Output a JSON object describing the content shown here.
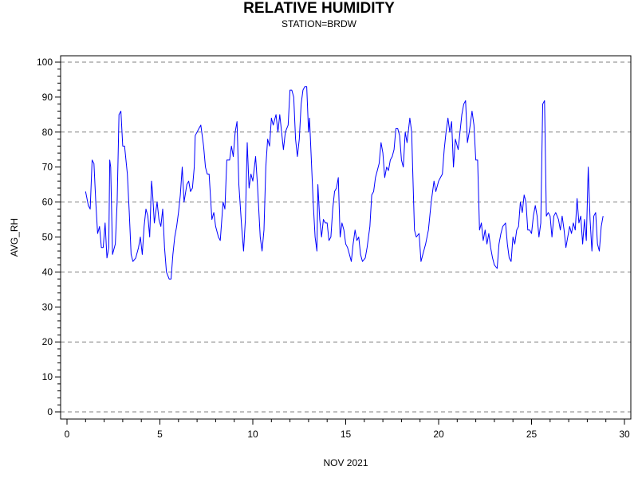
{
  "chart_data": {
    "type": "line",
    "title": "RELATIVE HUMIDITY",
    "subtitle": "STATION=BRDW",
    "xlabel": "NOV 2021",
    "ylabel": "AVG_RH",
    "xlim": [
      0,
      30
    ],
    "ylim": [
      0,
      100
    ],
    "x_ticks": [
      0,
      5,
      10,
      15,
      20,
      25,
      30
    ],
    "y_ticks": [
      0,
      10,
      20,
      30,
      40,
      50,
      60,
      70,
      80,
      90,
      100
    ],
    "grid": {
      "horizontal": true,
      "style": "dashed",
      "lines_at": [
        0,
        20,
        40,
        60,
        80,
        100
      ]
    },
    "series": [
      {
        "color": "#0000ff",
        "points": [
          [
            1.0,
            63
          ],
          [
            1.15,
            59
          ],
          [
            1.25,
            58
          ],
          [
            1.35,
            72
          ],
          [
            1.45,
            71
          ],
          [
            1.55,
            60
          ],
          [
            1.65,
            51
          ],
          [
            1.75,
            53
          ],
          [
            1.85,
            47
          ],
          [
            1.95,
            47
          ],
          [
            2.05,
            54
          ],
          [
            2.15,
            44
          ],
          [
            2.25,
            47
          ],
          [
            2.3,
            72
          ],
          [
            2.35,
            70
          ],
          [
            2.45,
            45
          ],
          [
            2.6,
            48
          ],
          [
            2.7,
            60
          ],
          [
            2.8,
            85
          ],
          [
            2.9,
            86
          ],
          [
            3.0,
            76
          ],
          [
            3.1,
            76
          ],
          [
            3.25,
            68
          ],
          [
            3.35,
            57
          ],
          [
            3.45,
            45
          ],
          [
            3.55,
            43
          ],
          [
            3.7,
            44
          ],
          [
            3.85,
            47
          ],
          [
            3.95,
            50
          ],
          [
            4.05,
            45
          ],
          [
            4.15,
            53
          ],
          [
            4.25,
            58
          ],
          [
            4.35,
            56
          ],
          [
            4.45,
            50
          ],
          [
            4.55,
            66
          ],
          [
            4.6,
            63
          ],
          [
            4.7,
            54
          ],
          [
            4.85,
            60
          ],
          [
            4.95,
            55
          ],
          [
            5.05,
            53
          ],
          [
            5.15,
            58
          ],
          [
            5.25,
            47
          ],
          [
            5.35,
            40
          ],
          [
            5.5,
            38
          ],
          [
            5.6,
            38
          ],
          [
            5.7,
            45
          ],
          [
            5.8,
            50
          ],
          [
            5.9,
            53
          ],
          [
            6.0,
            57
          ],
          [
            6.1,
            62
          ],
          [
            6.2,
            70
          ],
          [
            6.3,
            60
          ],
          [
            6.45,
            65
          ],
          [
            6.55,
            66
          ],
          [
            6.65,
            63
          ],
          [
            6.75,
            64
          ],
          [
            6.85,
            70
          ],
          [
            6.9,
            79
          ],
          [
            7.0,
            80
          ],
          [
            7.1,
            81
          ],
          [
            7.2,
            82
          ],
          [
            7.35,
            76
          ],
          [
            7.45,
            70
          ],
          [
            7.55,
            68
          ],
          [
            7.65,
            68
          ],
          [
            7.8,
            55
          ],
          [
            7.9,
            57
          ],
          [
            8.0,
            53
          ],
          [
            8.15,
            50
          ],
          [
            8.25,
            49
          ],
          [
            8.4,
            60
          ],
          [
            8.5,
            58
          ],
          [
            8.6,
            72
          ],
          [
            8.75,
            72
          ],
          [
            8.85,
            76
          ],
          [
            8.95,
            73
          ],
          [
            9.05,
            80
          ],
          [
            9.15,
            83
          ],
          [
            9.25,
            65
          ],
          [
            9.4,
            53
          ],
          [
            9.5,
            46
          ],
          [
            9.6,
            55
          ],
          [
            9.7,
            77
          ],
          [
            9.8,
            64
          ],
          [
            9.9,
            68
          ],
          [
            10.0,
            66
          ],
          [
            10.15,
            73
          ],
          [
            10.25,
            65
          ],
          [
            10.4,
            50
          ],
          [
            10.5,
            46
          ],
          [
            10.6,
            52
          ],
          [
            10.7,
            70
          ],
          [
            10.8,
            78
          ],
          [
            10.9,
            76
          ],
          [
            11.0,
            84
          ],
          [
            11.1,
            82
          ],
          [
            11.25,
            85
          ],
          [
            11.35,
            80
          ],
          [
            11.45,
            85
          ],
          [
            11.55,
            80
          ],
          [
            11.65,
            75
          ],
          [
            11.75,
            80
          ],
          [
            11.9,
            82
          ],
          [
            12.0,
            92
          ],
          [
            12.1,
            92
          ],
          [
            12.2,
            90
          ],
          [
            12.3,
            78
          ],
          [
            12.4,
            73
          ],
          [
            12.5,
            78
          ],
          [
            12.6,
            88
          ],
          [
            12.7,
            92
          ],
          [
            12.8,
            93
          ],
          [
            12.9,
            93
          ],
          [
            13.0,
            80
          ],
          [
            13.05,
            84
          ],
          [
            13.15,
            72
          ],
          [
            13.25,
            60
          ],
          [
            13.35,
            50
          ],
          [
            13.45,
            46
          ],
          [
            13.5,
            65
          ],
          [
            13.6,
            55
          ],
          [
            13.7,
            50
          ],
          [
            13.8,
            55
          ],
          [
            13.9,
            54
          ],
          [
            14.0,
            54
          ],
          [
            14.1,
            49
          ],
          [
            14.2,
            50
          ],
          [
            14.3,
            58
          ],
          [
            14.4,
            63
          ],
          [
            14.5,
            64
          ],
          [
            14.6,
            67
          ],
          [
            14.7,
            50
          ],
          [
            14.8,
            54
          ],
          [
            14.9,
            52
          ],
          [
            15.0,
            48
          ],
          [
            15.1,
            47
          ],
          [
            15.2,
            45
          ],
          [
            15.3,
            43
          ],
          [
            15.4,
            48
          ],
          [
            15.5,
            52
          ],
          [
            15.6,
            49
          ],
          [
            15.7,
            50
          ],
          [
            15.8,
            45
          ],
          [
            15.9,
            43
          ],
          [
            16.05,
            44
          ],
          [
            16.15,
            47
          ],
          [
            16.3,
            53
          ],
          [
            16.4,
            62
          ],
          [
            16.5,
            63
          ],
          [
            16.6,
            67
          ],
          [
            16.7,
            69
          ],
          [
            16.8,
            71
          ],
          [
            16.9,
            77
          ],
          [
            17.0,
            74
          ],
          [
            17.1,
            67
          ],
          [
            17.2,
            70
          ],
          [
            17.3,
            69
          ],
          [
            17.4,
            72
          ],
          [
            17.5,
            73
          ],
          [
            17.6,
            75
          ],
          [
            17.7,
            81
          ],
          [
            17.8,
            81
          ],
          [
            17.9,
            79
          ],
          [
            18.0,
            72
          ],
          [
            18.1,
            70
          ],
          [
            18.2,
            80
          ],
          [
            18.3,
            77
          ],
          [
            18.45,
            84
          ],
          [
            18.55,
            80
          ],
          [
            18.6,
            70
          ],
          [
            18.7,
            52
          ],
          [
            18.8,
            50
          ],
          [
            18.95,
            51
          ],
          [
            19.05,
            43
          ],
          [
            19.15,
            45
          ],
          [
            19.3,
            48
          ],
          [
            19.45,
            52
          ],
          [
            19.6,
            60
          ],
          [
            19.75,
            66
          ],
          [
            19.85,
            63
          ],
          [
            20.0,
            66
          ],
          [
            20.1,
            67
          ],
          [
            20.2,
            68
          ],
          [
            20.3,
            75
          ],
          [
            20.4,
            80
          ],
          [
            20.5,
            84
          ],
          [
            20.6,
            80
          ],
          [
            20.7,
            83
          ],
          [
            20.8,
            70
          ],
          [
            20.9,
            78
          ],
          [
            21.05,
            75
          ],
          [
            21.15,
            80
          ],
          [
            21.25,
            85
          ],
          [
            21.35,
            88
          ],
          [
            21.45,
            89
          ],
          [
            21.55,
            77
          ],
          [
            21.65,
            80
          ],
          [
            21.8,
            86
          ],
          [
            21.9,
            82
          ],
          [
            22.0,
            72
          ],
          [
            22.1,
            72
          ],
          [
            22.2,
            52
          ],
          [
            22.3,
            54
          ],
          [
            22.4,
            49
          ],
          [
            22.5,
            52
          ],
          [
            22.6,
            48
          ],
          [
            22.7,
            51
          ],
          [
            22.8,
            47
          ],
          [
            22.9,
            44
          ],
          [
            23.0,
            42
          ],
          [
            23.15,
            41
          ],
          [
            23.25,
            48
          ],
          [
            23.35,
            51
          ],
          [
            23.45,
            53
          ],
          [
            23.6,
            54
          ],
          [
            23.7,
            48
          ],
          [
            23.8,
            44
          ],
          [
            23.9,
            43
          ],
          [
            24.0,
            50
          ],
          [
            24.1,
            48
          ],
          [
            24.2,
            52
          ],
          [
            24.3,
            53
          ],
          [
            24.4,
            60
          ],
          [
            24.5,
            57
          ],
          [
            24.6,
            62
          ],
          [
            24.7,
            60
          ],
          [
            24.8,
            52
          ],
          [
            24.9,
            52
          ],
          [
            25.0,
            51
          ],
          [
            25.1,
            56
          ],
          [
            25.2,
            59
          ],
          [
            25.3,
            56
          ],
          [
            25.4,
            50
          ],
          [
            25.5,
            54
          ],
          [
            25.6,
            88
          ],
          [
            25.7,
            89
          ],
          [
            25.8,
            56
          ],
          [
            25.9,
            57
          ],
          [
            26.0,
            56
          ],
          [
            26.1,
            50
          ],
          [
            26.2,
            56
          ],
          [
            26.3,
            57
          ],
          [
            26.45,
            55
          ],
          [
            26.55,
            52
          ],
          [
            26.65,
            56
          ],
          [
            26.75,
            52
          ],
          [
            26.85,
            47
          ],
          [
            26.95,
            50
          ],
          [
            27.05,
            53
          ],
          [
            27.15,
            51
          ],
          [
            27.25,
            54
          ],
          [
            27.35,
            52
          ],
          [
            27.45,
            61
          ],
          [
            27.55,
            54
          ],
          [
            27.65,
            56
          ],
          [
            27.75,
            48
          ],
          [
            27.85,
            55
          ],
          [
            27.95,
            49
          ],
          [
            28.05,
            70
          ],
          [
            28.15,
            55
          ],
          [
            28.25,
            46
          ],
          [
            28.35,
            56
          ],
          [
            28.45,
            57
          ],
          [
            28.55,
            48
          ],
          [
            28.65,
            46
          ],
          [
            28.75,
            53
          ],
          [
            28.85,
            56
          ]
        ]
      }
    ]
  }
}
